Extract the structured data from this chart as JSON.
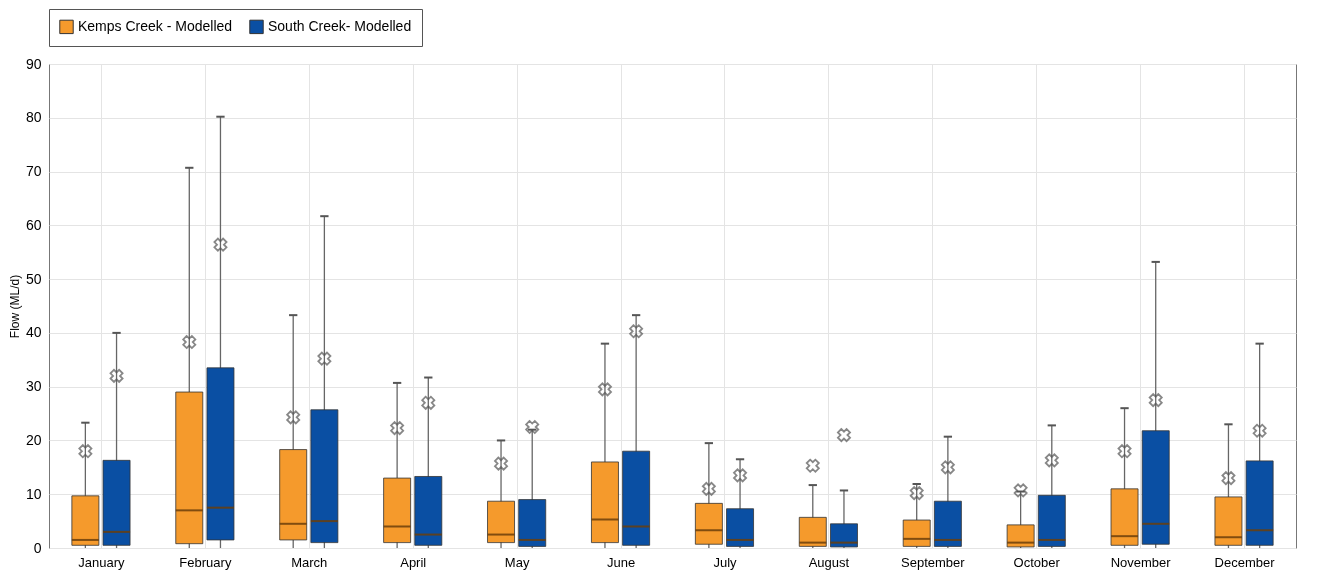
{
  "chart_data": {
    "type": "box",
    "ylabel": "Flow (ML/d)",
    "categories": [
      "January",
      "February",
      "March",
      "April",
      "May",
      "June",
      "July",
      "August",
      "September",
      "October",
      "November",
      "December"
    ],
    "ylim": [
      0,
      90
    ],
    "yticks": [
      0,
      10,
      20,
      30,
      40,
      50,
      60,
      70,
      80,
      90
    ],
    "grid": true,
    "legend": "top",
    "marker": "cross",
    "series": [
      {
        "name": "Kemps Creek - Modelled",
        "color": "#f59a2c",
        "boxes": [
          {
            "low": 0,
            "q1": 0.5,
            "median": 1.5,
            "q3": 9.7,
            "high": 23.3,
            "mean": 18
          },
          {
            "low": 0,
            "q1": 0.8,
            "median": 7,
            "q3": 29,
            "high": 70.7,
            "mean": 38.3
          },
          {
            "low": 0,
            "q1": 1.5,
            "median": 4.5,
            "q3": 18.3,
            "high": 43.3,
            "mean": 24.3
          },
          {
            "low": 0,
            "q1": 1,
            "median": 4,
            "q3": 13,
            "high": 30.7,
            "mean": 22.3
          },
          {
            "low": 0,
            "q1": 1,
            "median": 2.5,
            "q3": 8.7,
            "high": 20,
            "mean": 15.7
          },
          {
            "low": 0,
            "q1": 1,
            "median": 5.3,
            "q3": 16,
            "high": 38,
            "mean": 29.5
          },
          {
            "low": 0,
            "q1": 0.7,
            "median": 3.3,
            "q3": 8.3,
            "high": 19.5,
            "mean": 11
          },
          {
            "low": 0,
            "q1": 0.3,
            "median": 1,
            "q3": 5.7,
            "high": 11.7,
            "mean": 15.3
          },
          {
            "low": 0,
            "q1": 0.3,
            "median": 1.7,
            "q3": 5.2,
            "high": 11.9,
            "mean": 10.2
          },
          {
            "low": 0,
            "q1": 0.2,
            "median": 1,
            "q3": 4.3,
            "high": 10.5,
            "mean": 10.7
          },
          {
            "low": 0,
            "q1": 0.5,
            "median": 2.2,
            "q3": 11,
            "high": 26,
            "mean": 18
          },
          {
            "low": 0,
            "q1": 0.5,
            "median": 2,
            "q3": 9.5,
            "high": 23,
            "mean": 13
          }
        ]
      },
      {
        "name": "South Creek- Modelled",
        "color": "#0a4fa3",
        "boxes": [
          {
            "low": 0,
            "q1": 0.5,
            "median": 3,
            "q3": 16.3,
            "high": 40,
            "mean": 32
          },
          {
            "low": 0,
            "q1": 1.5,
            "median": 7.5,
            "q3": 33.5,
            "high": 80.2,
            "mean": 56.4
          },
          {
            "low": 0,
            "q1": 1,
            "median": 5,
            "q3": 25.7,
            "high": 61.7,
            "mean": 35.2
          },
          {
            "low": 0,
            "q1": 0.5,
            "median": 2.5,
            "q3": 13.3,
            "high": 31.7,
            "mean": 27
          },
          {
            "low": 0,
            "q1": 0.3,
            "median": 1.5,
            "q3": 9,
            "high": 22,
            "mean": 22.5
          },
          {
            "low": 0,
            "q1": 0.5,
            "median": 4,
            "q3": 18,
            "high": 43.3,
            "mean": 40.3
          },
          {
            "low": 0,
            "q1": 0.3,
            "median": 1.5,
            "q3": 7.3,
            "high": 16.5,
            "mean": 13.5
          },
          {
            "low": 0,
            "q1": 0.2,
            "median": 1,
            "q3": 4.5,
            "high": 10.7,
            "mean": 21
          },
          {
            "low": 0,
            "q1": 0.3,
            "median": 1.5,
            "q3": 8.7,
            "high": 20.7,
            "mean": 15
          },
          {
            "low": 0,
            "q1": 0.3,
            "median": 1.5,
            "q3": 9.8,
            "high": 22.8,
            "mean": 16.3
          },
          {
            "low": 0,
            "q1": 0.7,
            "median": 4.5,
            "q3": 21.8,
            "high": 53.2,
            "mean": 27.5
          },
          {
            "low": 0,
            "q1": 0.5,
            "median": 3.3,
            "q3": 16.2,
            "high": 38,
            "mean": 21.8
          }
        ]
      }
    ]
  }
}
